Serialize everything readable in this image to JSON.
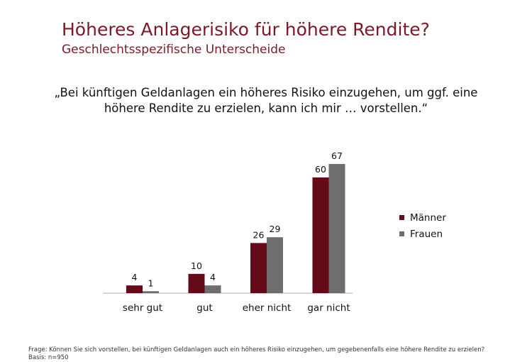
{
  "title": "Höheres Anlagerisiko für höhere Rendite?",
  "subtitle": "Geschlechtsspezifische Unterscheide",
  "quote_line1": "„Bei künftigen Geldanlagen ein höheres Risiko einzugehen, um ggf. eine",
  "quote_line2": "höhere Rendite zu erzielen, kann ich mir … vorstellen.“",
  "footer_question": "Frage: Können Sie sich vorstellen, bei künftigen Geldanlagen auch ein höheres Risiko einzugehen, um gegebenenfalls eine höhere Rendite zu erzielen?",
  "footer_basis": "Basis: n=950",
  "chart_data": {
    "type": "bar",
    "categories": [
      "sehr gut",
      "gut",
      "eher nicht",
      "gar nicht"
    ],
    "series": [
      {
        "name": "Männer",
        "color": "#640a18",
        "values": [
          4,
          10,
          26,
          60
        ]
      },
      {
        "name": "Frauen",
        "color": "#6e6e6e",
        "values": [
          1,
          4,
          29,
          67
        ]
      }
    ],
    "ylim": [
      0,
      67
    ],
    "legend": "right",
    "grid": false
  }
}
